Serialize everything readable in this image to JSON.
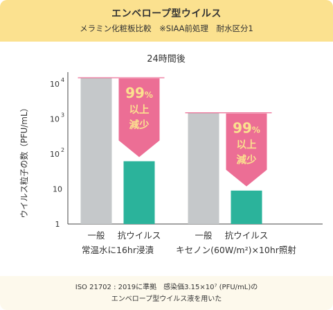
{
  "header": {
    "title": "エンベロープ型ウイルス",
    "subtitle": "メラミン化粧板比較　※SIAA前処理　耐水区分1"
  },
  "footer": {
    "line1": "ISO 21702 : 2019に準拠　感染価3.15×10⁷ (PFU/mL)の",
    "line2": "エンベロープ型ウイルス液を用いた"
  },
  "colors": {
    "control": "#c5c8ca",
    "treated": "#2bb39b",
    "arrow": "#ec6e95",
    "arrowText": "#fbe18f",
    "header": "#fbe18f"
  },
  "chart_data": {
    "type": "bar",
    "title": "24時間後",
    "ylabel": "ウイルス粒子の数（PFU/mL）",
    "yscale": "log",
    "ylim": [
      1,
      10000
    ],
    "yticks": [
      {
        "value": 1,
        "label": "1"
      },
      {
        "value": 10,
        "label": "10"
      },
      {
        "value": 100,
        "label": "10²"
      },
      {
        "value": 1000,
        "label": "10³"
      },
      {
        "value": 10000,
        "label": "10⁴"
      }
    ],
    "groups": [
      {
        "name": "常温水に16hr浸漬",
        "bars": [
          {
            "label": "一般",
            "value": 15000,
            "kind": "control"
          },
          {
            "label": "抗ウイルス",
            "value": 62,
            "kind": "treated"
          }
        ],
        "reduction_pct": "99%",
        "reduction_text": [
          "以上",
          "減少"
        ]
      },
      {
        "name": "キセノン(60W/m²)×10hr照射",
        "bars": [
          {
            "label": "一般",
            "value": 1500,
            "kind": "control"
          },
          {
            "label": "抗ウイルス",
            "value": 9,
            "kind": "treated"
          }
        ],
        "reduction_pct": "99%",
        "reduction_text": [
          "以上",
          "減少"
        ]
      }
    ]
  }
}
